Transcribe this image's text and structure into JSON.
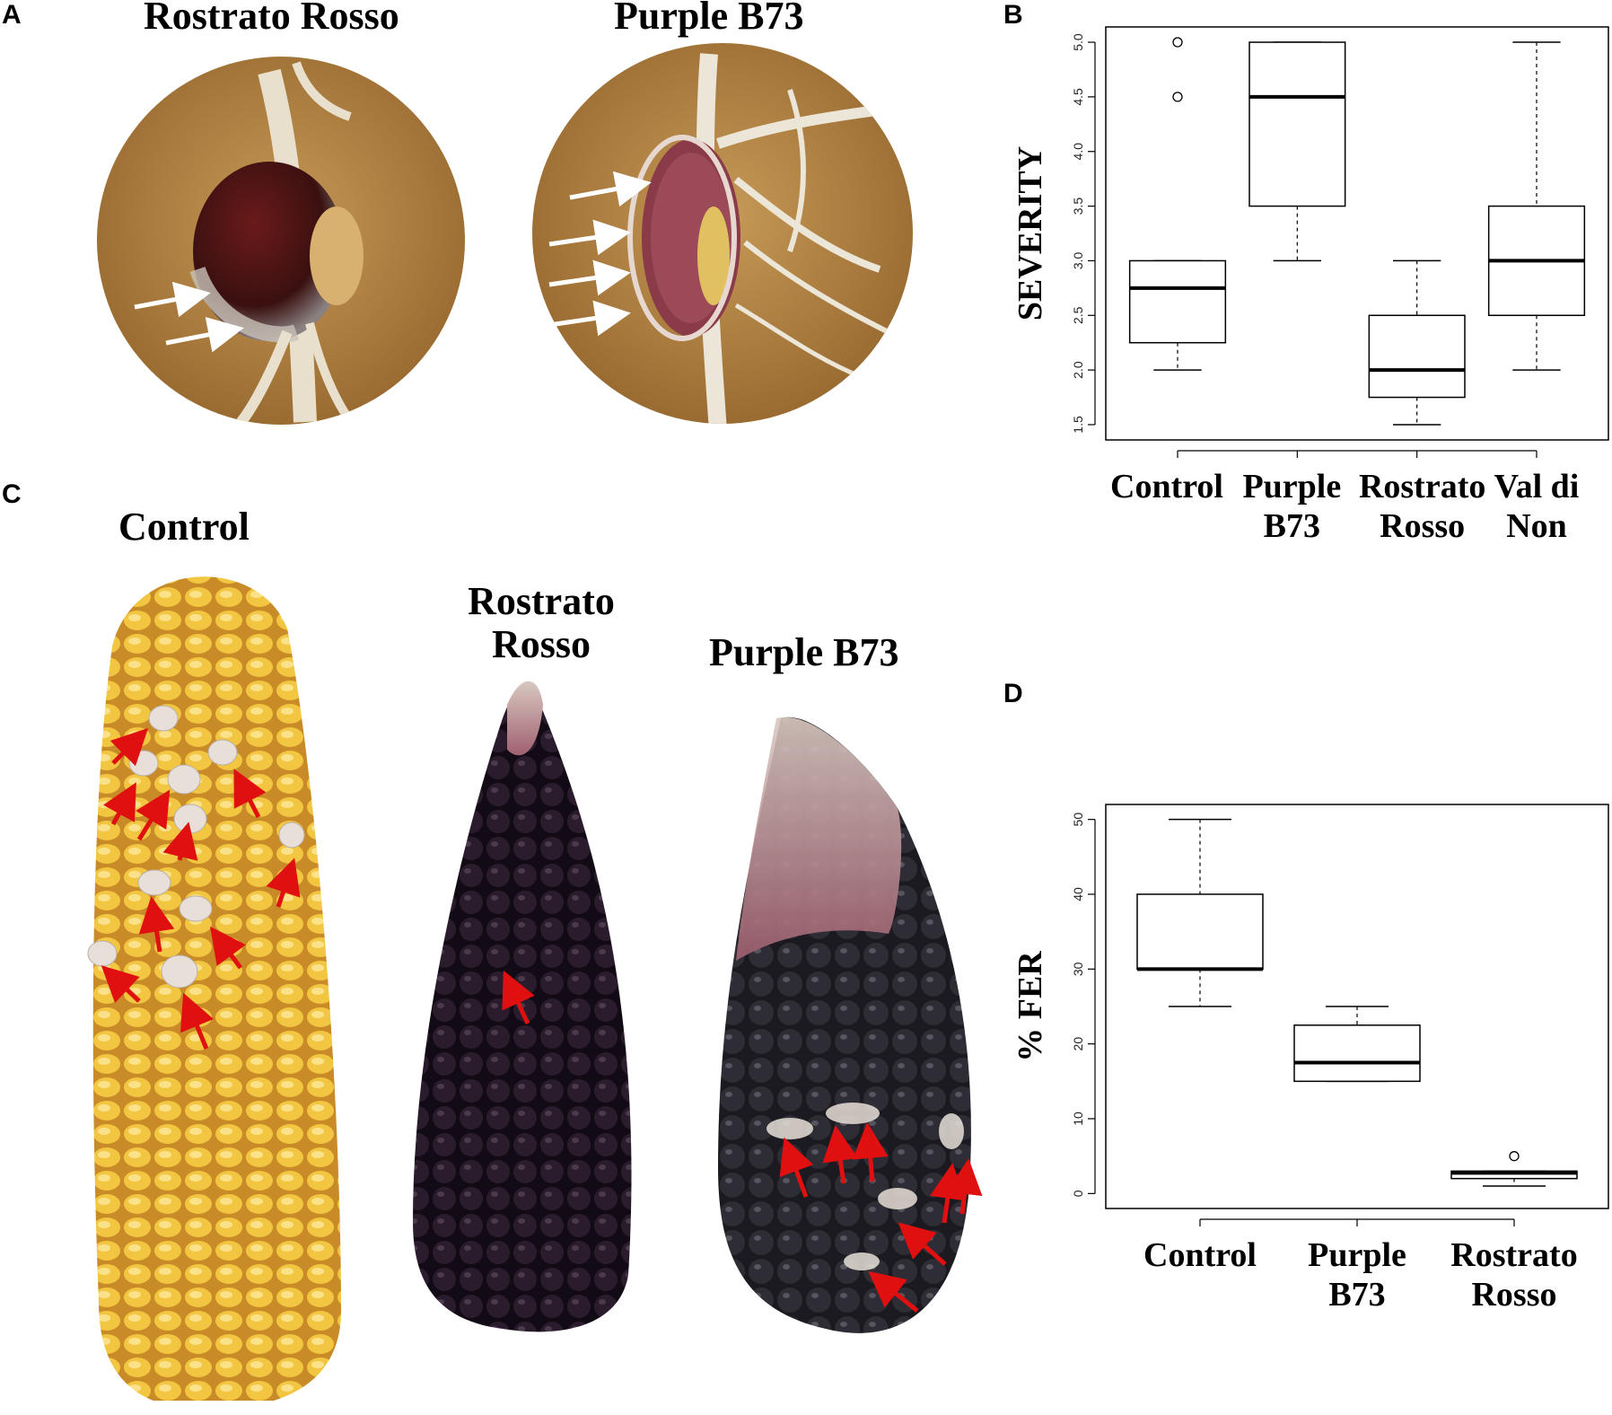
{
  "panels": {
    "A": {
      "letter": "A",
      "photos": [
        {
          "title": "Rostrato Rosso"
        },
        {
          "title": "Purple B73"
        }
      ]
    },
    "B": {
      "letter": "B"
    },
    "C": {
      "letter": "C",
      "ears": [
        {
          "title": "Control"
        },
        {
          "title": "Rostrato Rosso"
        },
        {
          "title": "Purple B73"
        }
      ]
    },
    "D": {
      "letter": "D"
    }
  },
  "chart_data": [
    {
      "panel": "B",
      "type": "box",
      "ylabel": "SEVERITY",
      "xlabel": "",
      "ylim": [
        1.5,
        5.0
      ],
      "yticks": [
        "1.5",
        "2.0",
        "2.5",
        "3.0",
        "3.5",
        "4.0",
        "4.5",
        "5.0"
      ],
      "categories": [
        "Control",
        "Purple B73",
        "Rostrato Rosso",
        "Val di Non"
      ],
      "boxes": [
        {
          "category": "Control",
          "min": 2.0,
          "q1": 2.25,
          "median": 2.75,
          "q3": 3.0,
          "max": 3.0,
          "outliers": [
            4.5,
            5.0
          ]
        },
        {
          "category": "Purple B73",
          "min": 3.0,
          "q1": 3.5,
          "median": 4.5,
          "q3": 5.0,
          "max": 5.0,
          "outliers": []
        },
        {
          "category": "Rostrato Rosso",
          "min": 1.5,
          "q1": 1.75,
          "median": 2.0,
          "q3": 2.5,
          "max": 3.0,
          "outliers": []
        },
        {
          "category": "Val di Non",
          "min": 2.0,
          "q1": 2.5,
          "median": 3.0,
          "q3": 3.5,
          "max": 5.0,
          "outliers": []
        }
      ],
      "grid": false
    },
    {
      "panel": "D",
      "type": "box",
      "ylabel": "% FER",
      "xlabel": "",
      "ylim": [
        0,
        50
      ],
      "yticks": [
        "0",
        "10",
        "20",
        "30",
        "40",
        "50"
      ],
      "categories": [
        "Control",
        "Purple B73",
        "Rostrato Rosso"
      ],
      "boxes": [
        {
          "category": "Control",
          "min": 25,
          "q1": 30,
          "median": 30,
          "q3": 40,
          "max": 50,
          "outliers": []
        },
        {
          "category": "Purple B73",
          "min": 15,
          "q1": 15,
          "median": 17.5,
          "q3": 22.5,
          "max": 25,
          "outliers": []
        },
        {
          "category": "Rostrato Rosso",
          "min": 1,
          "q1": 2,
          "median": 2.75,
          "q3": 3,
          "max": 3,
          "outliers": [
            5
          ]
        }
      ],
      "grid": false
    }
  ],
  "colors": {
    "box_stroke": "#000000",
    "arrow_white": "#ffffff",
    "arrow_red": "#e01010",
    "wood": "#b88a48",
    "yellow_kernel": "#f2c640",
    "purple_kernel": "#2a1c2c",
    "dark_kernel": "#2e2c34"
  }
}
